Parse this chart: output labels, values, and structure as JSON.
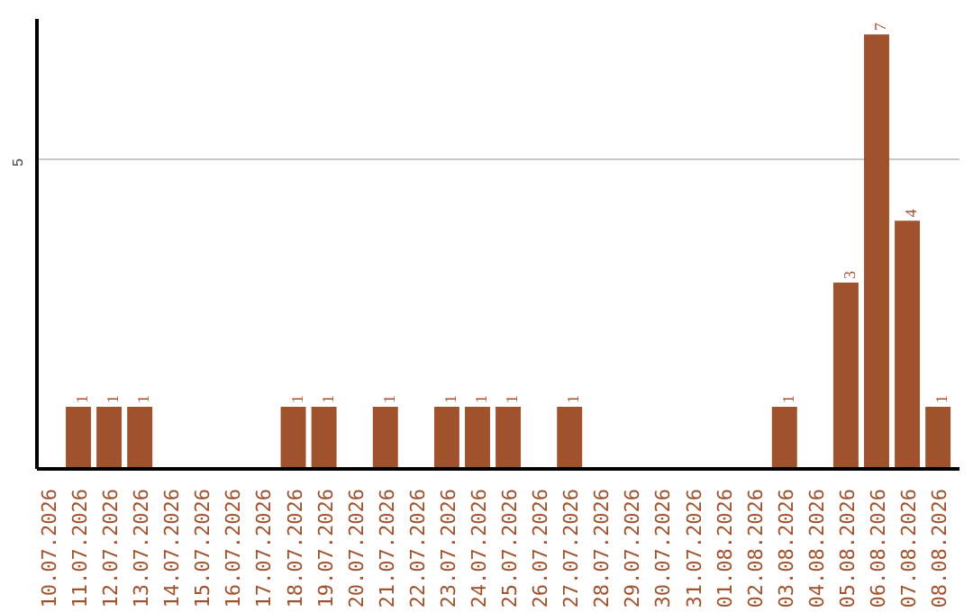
{
  "chart_data": {
    "type": "bar",
    "categories": [
      "10.07.2026",
      "11.07.2026",
      "12.07.2026",
      "13.07.2026",
      "14.07.2026",
      "15.07.2026",
      "16.07.2026",
      "17.07.2026",
      "18.07.2026",
      "19.07.2026",
      "20.07.2026",
      "21.07.2026",
      "22.07.2026",
      "23.07.2026",
      "24.07.2026",
      "25.07.2026",
      "26.07.2026",
      "27.07.2026",
      "28.07.2026",
      "29.07.2026",
      "30.07.2026",
      "31.07.2026",
      "01.08.2026",
      "02.08.2026",
      "03.08.2026",
      "04.08.2026",
      "05.08.2026",
      "06.08.2026",
      "07.08.2026",
      "08.08.2026"
    ],
    "values": [
      0,
      1,
      1,
      1,
      0,
      0,
      0,
      0,
      1,
      1,
      0,
      1,
      0,
      1,
      1,
      1,
      0,
      1,
      0,
      0,
      0,
      0,
      0,
      0,
      1,
      0,
      3,
      7,
      4,
      1
    ],
    "value_labels": [
      null,
      "1",
      "1",
      "1",
      null,
      null,
      null,
      null,
      "1",
      "1",
      null,
      "1",
      null,
      "1",
      "1",
      "1",
      null,
      "1",
      null,
      null,
      null,
      null,
      null,
      null,
      "1",
      null,
      "3",
      "7",
      "4",
      "1"
    ],
    "color": "#a0522d",
    "ylim": [
      0,
      7.25
    ],
    "yticks": [
      5
    ],
    "grid": "y"
  }
}
